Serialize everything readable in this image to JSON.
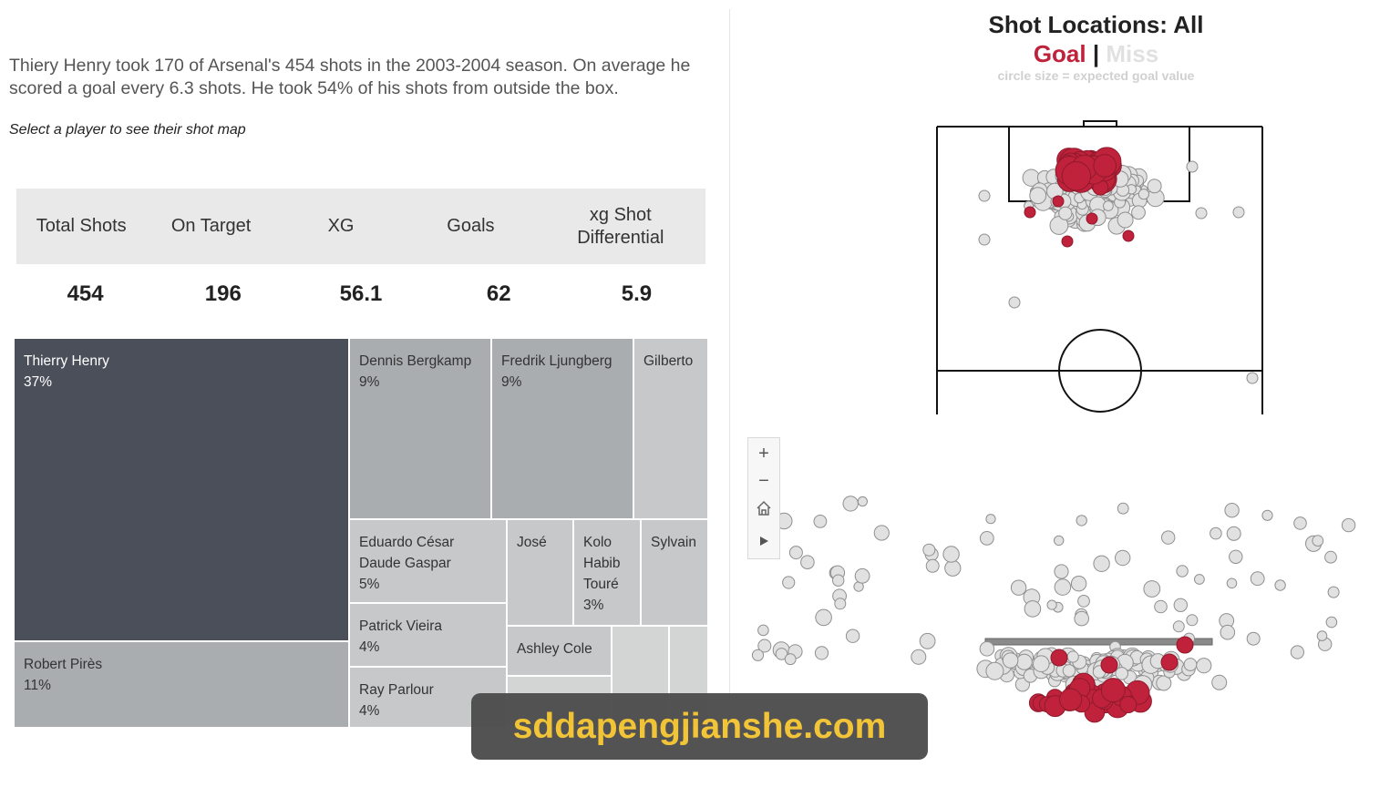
{
  "summary": {
    "text": "Thiery Henry took 170 of Arsenal's 454 shots in the 2003-2004 season. On average he scored a goal every 6.3 shots. He took 54% of his shots from outside the box.",
    "hint": "Select a player to see their shot map"
  },
  "kpis": [
    {
      "label": "Total Shots",
      "value": "454"
    },
    {
      "label": "On Target",
      "value": "196"
    },
    {
      "label": "XG",
      "value": "56.1"
    },
    {
      "label": "Goals",
      "value": "62"
    },
    {
      "label": "xg Shot Differential",
      "value": "5.9"
    }
  ],
  "treemap": [
    {
      "name": "Thierry Henry",
      "pct": "37%"
    },
    {
      "name": "Robert Pirès",
      "pct": "11%"
    },
    {
      "name": "Dennis Bergkamp",
      "pct": "9%"
    },
    {
      "name": "Fredrik Ljungberg",
      "pct": "9%"
    },
    {
      "name": "Gilberto",
      "pct": ""
    },
    {
      "name": "Eduardo César Daude Gaspar",
      "pct": "5%"
    },
    {
      "name": "José",
      "pct": ""
    },
    {
      "name": "Kolo Habib Touré",
      "pct": "3%"
    },
    {
      "name": "Sylvain",
      "pct": ""
    },
    {
      "name": "Patrick Vieira",
      "pct": "4%"
    },
    {
      "name": "Ashley Cole",
      "pct": ""
    },
    {
      "name": "Ray Parlour",
      "pct": "4%"
    }
  ],
  "shot_map": {
    "title": "Shot Locations: All",
    "legend_goal": "Goal",
    "legend_sep": "|",
    "legend_miss": "Miss",
    "caption": "circle size = expected goal value",
    "goal_color": "#c0223b",
    "miss_color": "#e1e1e1"
  },
  "zoom_controls": {
    "zoom_in": "+",
    "zoom_out": "−",
    "home": "home-icon",
    "play": "play-icon"
  },
  "watermark": "sddapengjianshe.com"
}
